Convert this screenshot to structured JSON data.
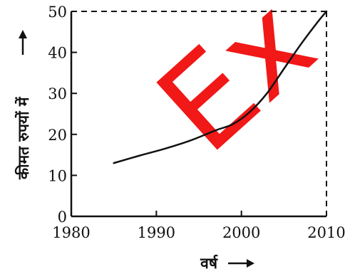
{
  "chart_data": {
    "type": "line",
    "title": "",
    "xlabel": "वर्ष",
    "ylabel": "कीमत रुपयों में",
    "xlim": [
      1980,
      2010
    ],
    "ylim": [
      0,
      50
    ],
    "xticks": [
      "1980",
      "1990",
      "2000",
      "2010"
    ],
    "yticks": [
      "0",
      "10",
      "20",
      "30",
      "40",
      "50"
    ],
    "series": [
      {
        "x": [
          1985,
          1988,
          1991,
          1994,
          1997,
          1999,
          2001,
          2003,
          2005,
          2007,
          2009,
          2010
        ],
        "y": [
          13,
          14.8,
          16.5,
          18.5,
          21,
          22.5,
          25.5,
          30,
          36,
          42,
          47.5,
          50
        ]
      }
    ],
    "reference_lines": {
      "x": 2010,
      "y": 50,
      "style": "dashed"
    },
    "watermark": "Ex",
    "colors": {
      "line": "#111111",
      "axis": "#111111",
      "watermark": "#f00000"
    }
  }
}
